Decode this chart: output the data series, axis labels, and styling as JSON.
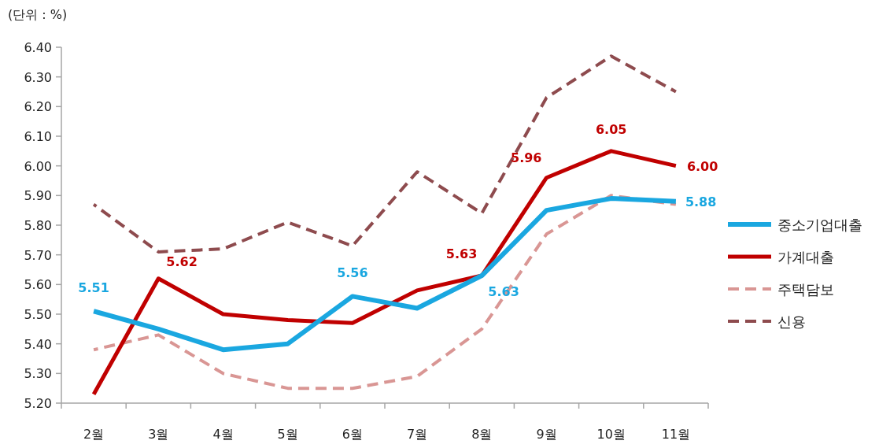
{
  "chart_data": {
    "type": "line",
    "ylabel": "(단위 : %)",
    "categories": [
      "2월",
      "3월",
      "4월",
      "5월",
      "6월",
      "7월",
      "8월",
      "9월",
      "10월",
      "11월"
    ],
    "ylim": [
      5.2,
      6.4
    ],
    "yticks": [
      {
        "value": 5.2,
        "label": "5.20"
      },
      {
        "value": 5.3,
        "label": "5.30"
      },
      {
        "value": 5.4,
        "label": "5.40"
      },
      {
        "value": 5.5,
        "label": "5.50"
      },
      {
        "value": 5.6,
        "label": "5.60"
      },
      {
        "value": 5.7,
        "label": "5.70"
      },
      {
        "value": 5.8,
        "label": "5.80"
      },
      {
        "value": 5.9,
        "label": "5.90"
      },
      {
        "value": 6.0,
        "label": "6.00"
      },
      {
        "value": 6.1,
        "label": "6.10"
      },
      {
        "value": 6.2,
        "label": "6.20"
      },
      {
        "value": 6.3,
        "label": "6.30"
      },
      {
        "value": 6.4,
        "label": "6.40"
      }
    ],
    "grid": false,
    "legend": "right",
    "marker": "none",
    "series": [
      {
        "name": "중소기업대출",
        "color": "#1aa7e0",
        "line_style": "solid",
        "values": [
          5.51,
          5.45,
          5.38,
          5.4,
          5.56,
          5.52,
          5.63,
          5.85,
          5.89,
          5.88
        ],
        "value_labels": [
          "5.51",
          null,
          null,
          null,
          "5.56",
          null,
          "5.63",
          null,
          null,
          "5.88"
        ]
      },
      {
        "name": "가계대출",
        "color": "#c00000",
        "line_style": "solid",
        "values": [
          5.23,
          5.62,
          5.5,
          5.48,
          5.47,
          5.58,
          5.63,
          5.96,
          6.05,
          6.0
        ],
        "value_labels": [
          null,
          "5.62",
          null,
          null,
          null,
          null,
          "5.63",
          "5.96",
          "6.05",
          "6.00"
        ]
      },
      {
        "name": "주택담보",
        "color": "#d99694",
        "line_style": "dashed",
        "values": [
          5.38,
          5.43,
          5.3,
          5.25,
          5.25,
          5.29,
          5.45,
          5.77,
          5.9,
          5.87
        ]
      },
      {
        "name": "신용",
        "color": "#8e4b4e",
        "line_style": "dashed",
        "values": [
          5.87,
          5.71,
          5.72,
          5.81,
          5.73,
          5.98,
          5.84,
          6.23,
          6.37,
          6.25
        ]
      }
    ]
  }
}
